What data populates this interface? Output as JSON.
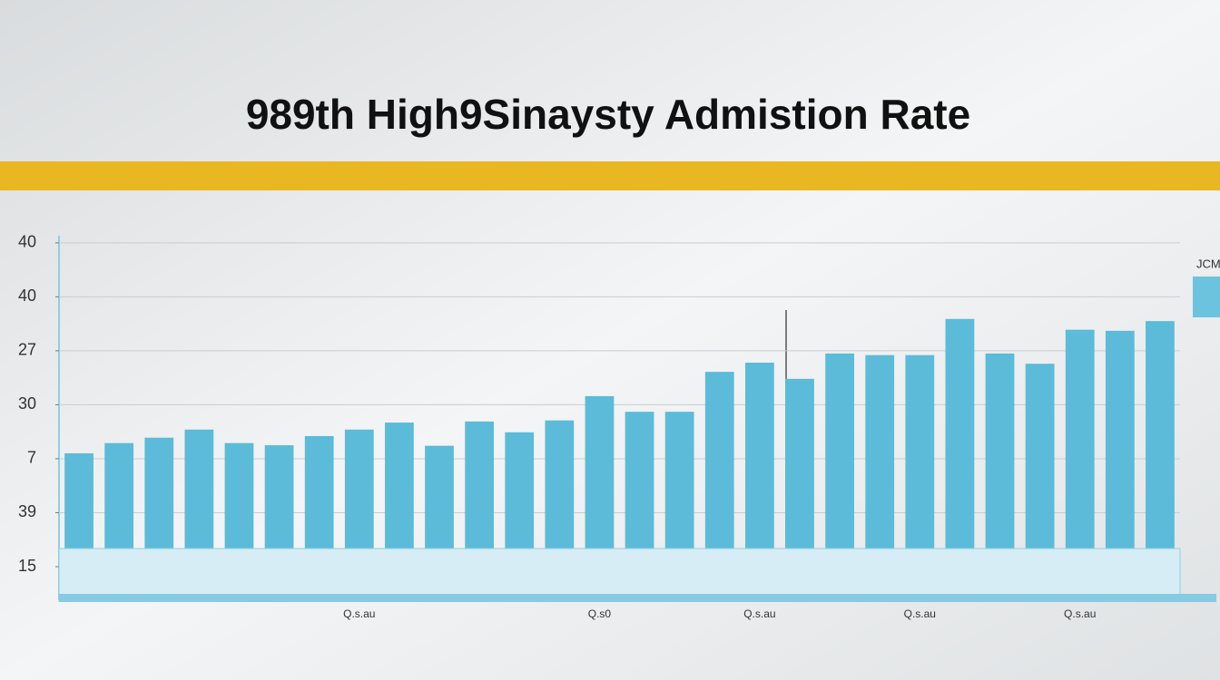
{
  "chart_data": {
    "type": "bar",
    "title": "989th High9Sinaysty Admistion Rate",
    "legend_label": "JCM",
    "categories": [
      null,
      null,
      null,
      null,
      null,
      null,
      null,
      "Q.s.au",
      null,
      null,
      null,
      null,
      null,
      "Q.s0",
      null,
      null,
      null,
      "Q.s.au",
      null,
      null,
      null,
      "Q.s.au",
      null,
      null,
      null,
      "Q.s.au",
      null,
      null
    ],
    "values": [
      2.1,
      2.29,
      2.39,
      2.54,
      2.29,
      2.25,
      2.42,
      2.54,
      2.67,
      2.24,
      2.69,
      2.49,
      2.71,
      3.16,
      2.87,
      2.87,
      3.61,
      3.78,
      3.48,
      3.95,
      3.92,
      3.92,
      4.59,
      3.95,
      3.76,
      4.39,
      4.37,
      4.55
    ],
    "color": "#5bbbd9",
    "ylim": [
      0,
      6.3
    ],
    "yticks": [
      {
        "value": 0,
        "label": "15"
      },
      {
        "value": 1,
        "label": "39"
      },
      {
        "value": 2,
        "label": "7"
      },
      {
        "value": 3,
        "label": "30"
      },
      {
        "value": 4,
        "label": "27"
      },
      {
        "value": 5,
        "label": "40"
      },
      {
        "value": 6,
        "label": "40"
      }
    ],
    "grid": true
  }
}
